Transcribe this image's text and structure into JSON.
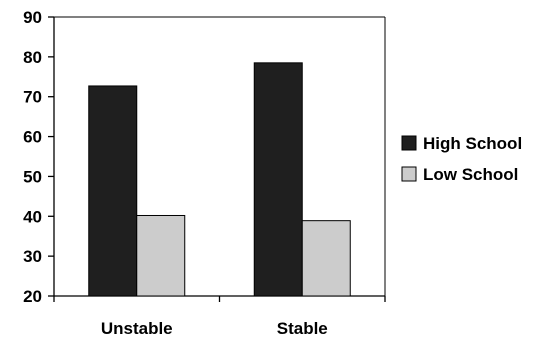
{
  "chart_data": {
    "type": "bar",
    "categories": [
      "Unstable",
      "Stable"
    ],
    "series": [
      {
        "name": "High School",
        "values": [
          72.7,
          78.5
        ],
        "color": "#1f1f1f"
      },
      {
        "name": "Low School",
        "values": [
          40.2,
          38.9
        ],
        "color": "#cccccc"
      }
    ],
    "ylim": [
      20,
      90
    ],
    "yticks": [
      20,
      30,
      40,
      50,
      60,
      70,
      80,
      90
    ],
    "grid": false,
    "legend_position": "right",
    "title": "",
    "xlabel": "",
    "ylabel": ""
  }
}
